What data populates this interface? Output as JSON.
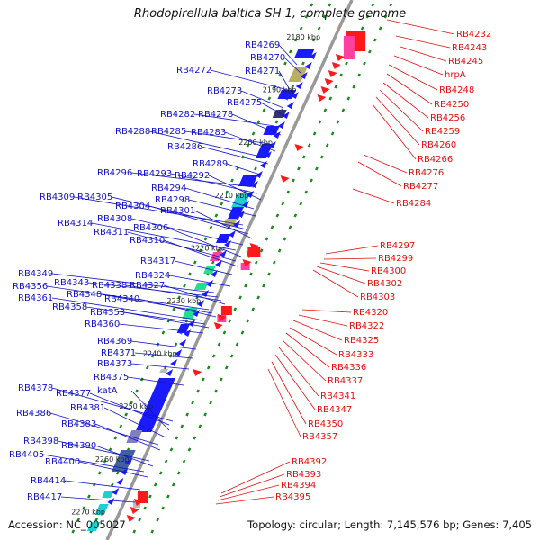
{
  "title": "Rhodopirellula baltica SH 1, complete genome",
  "accession": "Accession: NC_005027",
  "topology": "Topology: circular; Length: 7,145,576 bp; Genes: 7,405",
  "colors": {
    "left_label": "#1010c8",
    "right_label": "#e01010",
    "gene_forward": "#1a1aff",
    "gene_reverse": "#ff1a1a",
    "tick": "#1a8a1a",
    "backbone": "#999999"
  },
  "kbp_marks": [
    "2180 kbp",
    "2190 kbp",
    "2200 kbp",
    "2210 kbp",
    "2220 kbp",
    "2230 kbp",
    "2240 kbp",
    "2250 kbp",
    "2260 kbp",
    "2270 kbp"
  ],
  "left_genes": [
    "RB4269",
    "RB4270",
    "RB4272",
    "RB4271",
    "RB4273",
    "RB4275",
    "RB4282",
    "RB4278",
    "RB4285",
    "RB4283",
    "RB4288",
    "RB4286",
    "RB4289",
    "RB4296",
    "RB4293",
    "RB4292",
    "RB4294",
    "RB4298",
    "RB4309",
    "RB4305",
    "RB4304",
    "RB4301",
    "RB4308",
    "RB4314",
    "RB4306",
    "RB4311",
    "RB4310",
    "RB4317",
    "RB4324",
    "RB4349",
    "RB4343",
    "RB4338",
    "RB4327",
    "RB4356",
    "RB4348",
    "RB4340",
    "RB4361",
    "RB4358",
    "RB4353",
    "RB4360",
    "RB4369",
    "RB4371",
    "RB4373",
    "RB4375",
    "RB4378",
    "RB4377",
    "katA",
    "RB4381",
    "RB4386",
    "RB4383",
    "RB4398",
    "RB4390",
    "RB4405",
    "RB4400",
    "RB4414",
    "RB4417"
  ],
  "right_genes": [
    "RB4232",
    "RB4243",
    "RB4245",
    "hrpA",
    "RB4248",
    "RB4250",
    "RB4256",
    "RB4259",
    "RB4260",
    "RB4266",
    "RB4276",
    "RB4277",
    "RB4284",
    "RB4297",
    "RB4299",
    "RB4300",
    "RB4302",
    "RB4303",
    "RB4320",
    "RB4322",
    "RB4325",
    "RB4333",
    "RB4336",
    "RB4337",
    "RB4341",
    "RB4347",
    "RB4350",
    "RB4357",
    "RB4392",
    "RB4393",
    "RB4394",
    "RB4395"
  ]
}
